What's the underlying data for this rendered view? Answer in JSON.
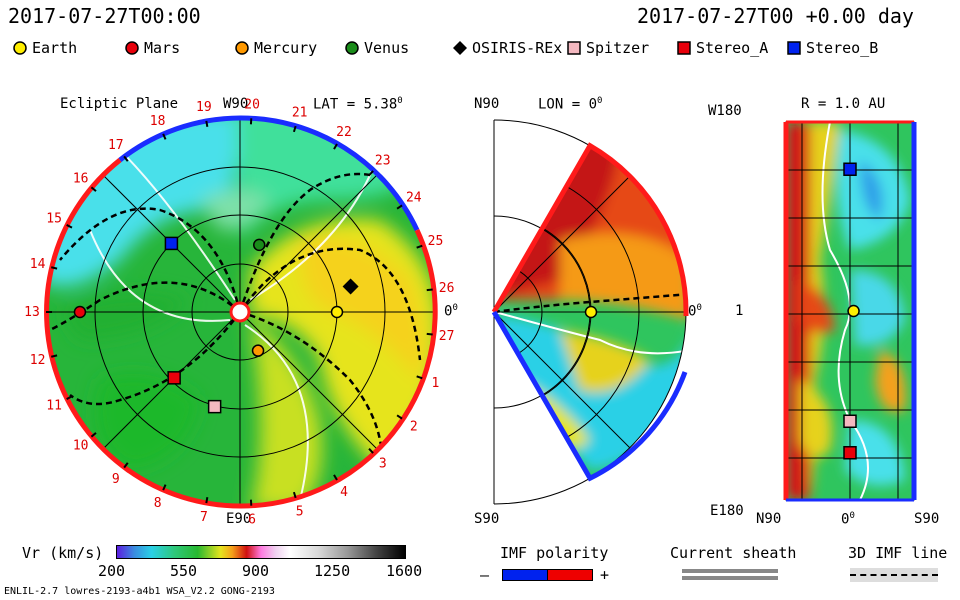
{
  "header": {
    "datetime": "2017-07-27T00:00",
    "run_time": "2017-07-27T00 +0.00 day"
  },
  "legend": [
    {
      "name": "Earth",
      "color": "#ffee00",
      "shape": "circle"
    },
    {
      "name": "Mars",
      "color": "#e8000b",
      "shape": "circle"
    },
    {
      "name": "Mercury",
      "color": "#ff9900",
      "shape": "circle"
    },
    {
      "name": "Venus",
      "color": "#1a8c1a",
      "shape": "circle"
    },
    {
      "name": "OSIRIS-REx",
      "color": "#000000",
      "shape": "diamond"
    },
    {
      "name": "Spitzer",
      "color": "#f4b8c0",
      "shape": "square"
    },
    {
      "name": "Stereo_A",
      "color": "#e8000b",
      "shape": "square"
    },
    {
      "name": "Stereo_B",
      "color": "#0022ee",
      "shape": "square"
    }
  ],
  "chart_data": [
    {
      "type": "heatmap",
      "panel": "ecliptic",
      "title": "Ecliptic Plane",
      "lat_label": "LAT = 5.38",
      "lat_sup": "0",
      "top_label": "W90",
      "bottom_label": "E90",
      "right_label": "0",
      "right_sup": "0",
      "carrington_ticks": [
        "19",
        "20",
        "21",
        "22",
        "23",
        "24",
        "25",
        "26",
        "27",
        "1",
        "2",
        "3",
        "4",
        "5",
        "6",
        "7",
        "8",
        "9",
        "10",
        "11",
        "12",
        "13",
        "14",
        "15",
        "16",
        "17",
        "18"
      ],
      "bodies": [
        {
          "name": "Earth",
          "r_au": 1.0,
          "lon_deg": 0
        },
        {
          "name": "Mars",
          "r_au": 1.65,
          "lon_deg": 180
        },
        {
          "name": "Mercury",
          "r_au": 0.44,
          "lon_deg": -65
        },
        {
          "name": "Venus",
          "r_au": 0.72,
          "lon_deg": 74
        },
        {
          "name": "OSIRIS-REx",
          "r_au": 1.17,
          "lon_deg": 13
        },
        {
          "name": "Spitzer",
          "r_au": 1.01,
          "lon_deg": -105
        },
        {
          "name": "Stereo_A",
          "r_au": 0.96,
          "lon_deg": -135
        },
        {
          "name": "Stereo_B",
          "r_au": 1.0,
          "lon_deg": 135
        }
      ]
    },
    {
      "type": "heatmap",
      "panel": "meridional",
      "lon_label": "LON = 0",
      "lon_sup": "0",
      "top_label": "N90",
      "bottom_label": "S90",
      "right_label": "0",
      "right_sup": "0",
      "bodies": [
        {
          "name": "Earth",
          "r_au": 1.0,
          "lat_deg": 0
        }
      ]
    },
    {
      "type": "heatmap",
      "panel": "radius",
      "r_label": "R = 1.0 AU",
      "y_top": "W180",
      "y_mid": "1",
      "y_bottom": "E180",
      "x_left": "N90",
      "x_mid": "0",
      "x_mid_sup": "0",
      "x_right": "S90",
      "bodies": [
        {
          "name": "Stereo_B",
          "lat_deg": 0,
          "lon_deg": 135
        },
        {
          "name": "Earth",
          "lat_deg": -5,
          "lon_deg": 0
        },
        {
          "name": "Spitzer",
          "lat_deg": 0,
          "lon_deg": -105
        },
        {
          "name": "Stereo_A",
          "lat_deg": 0,
          "lon_deg": -135
        }
      ]
    }
  ],
  "colorbar": {
    "label": "Vr (km/s)",
    "ticks": [
      "200",
      "550",
      "900",
      "1250",
      "1600"
    ]
  },
  "imf_polarity": {
    "label": "IMF polarity",
    "minus": "–",
    "plus": "+"
  },
  "current_sheath": {
    "label": "Current sheath"
  },
  "imf_line": {
    "label": "3D IMF line"
  },
  "footer": "ENLIL-2.7 lowres-2193-a4b1 WSA_V2.2 GONG-2193",
  "colors": {
    "ring_red": "#ff1a1a",
    "ring_blue": "#1a2cff"
  }
}
